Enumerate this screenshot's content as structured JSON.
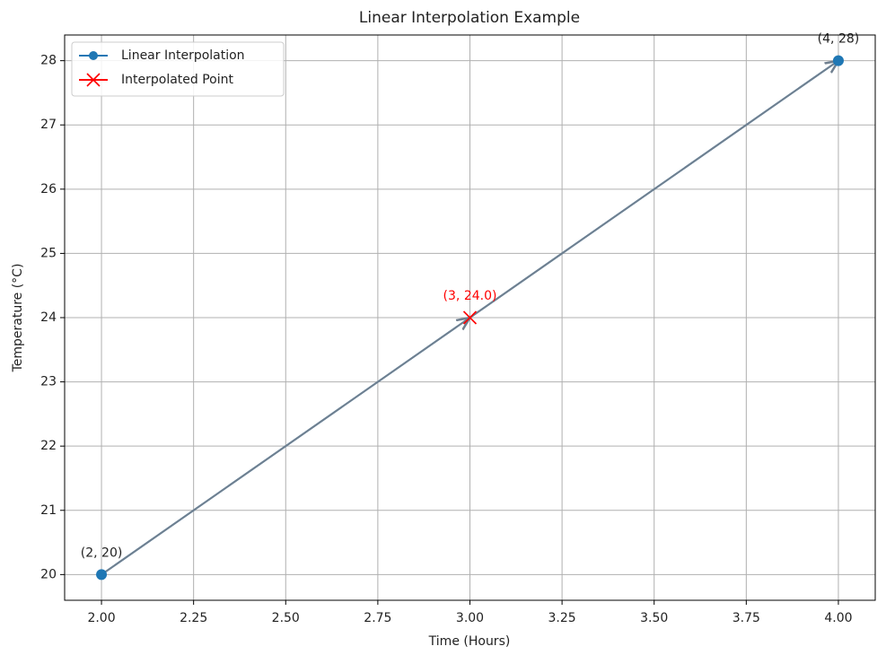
{
  "chart_data": {
    "type": "line",
    "title": "Linear Interpolation Example",
    "xlabel": "Time (Hours)",
    "ylabel": "Temperature (°C)",
    "xlim": [
      1.9,
      4.1
    ],
    "ylim": [
      19.6,
      28.4
    ],
    "xticks": [
      {
        "value": 2,
        "label": "2.00"
      },
      {
        "value": 2.25,
        "label": "2.25"
      },
      {
        "value": 2.5,
        "label": "2.50"
      },
      {
        "value": 2.75,
        "label": "2.75"
      },
      {
        "value": 3,
        "label": "3.00"
      },
      {
        "value": 3.25,
        "label": "3.25"
      },
      {
        "value": 3.5,
        "label": "3.50"
      },
      {
        "value": 3.75,
        "label": "3.75"
      },
      {
        "value": 4,
        "label": "4.00"
      }
    ],
    "yticks": [
      20,
      21,
      22,
      23,
      24,
      25,
      26,
      27,
      28
    ],
    "grid": true,
    "legend": "upper left",
    "series": [
      {
        "name": "Linear Interpolation",
        "color": "#1f77b4",
        "marker": "circle",
        "x": [
          2,
          4
        ],
        "values": [
          20,
          28
        ]
      },
      {
        "name": "Interpolated Point",
        "color": "#ff0000",
        "marker": "x",
        "x": [
          3
        ],
        "values": [
          24
        ]
      }
    ],
    "annotations": [
      {
        "text": "(2, 20)",
        "x": 2,
        "y": 20,
        "color": "#222222"
      },
      {
        "text": "(4, 28)",
        "x": 4,
        "y": 28,
        "color": "#222222"
      },
      {
        "text": "(3, 24.0)",
        "x": 3,
        "y": 24,
        "color": "#ff0000"
      }
    ]
  }
}
